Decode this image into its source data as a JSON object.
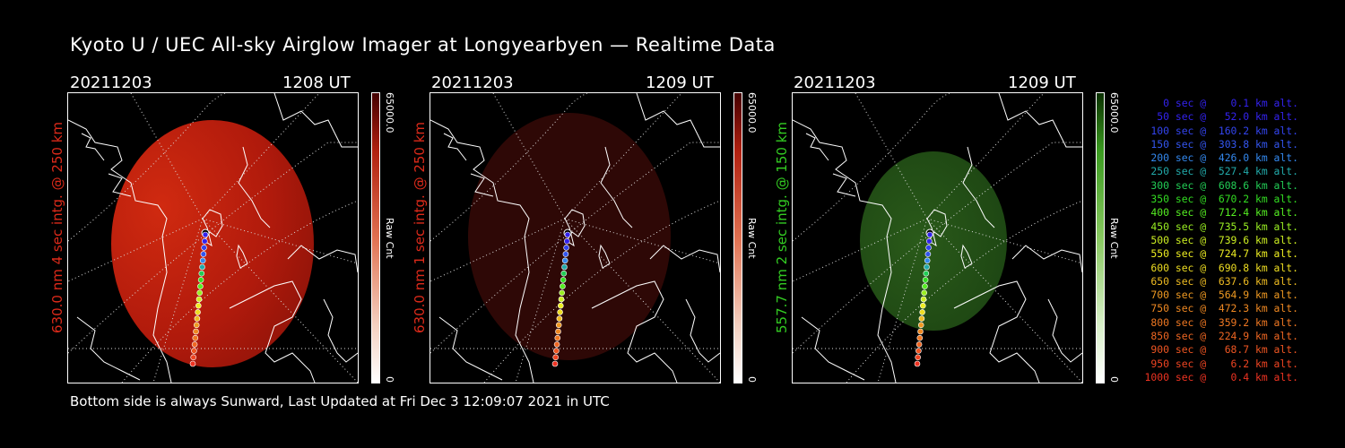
{
  "title": "Kyoto U / UEC All-sky Airglow Imager at Longyearbyen — Realtime Data",
  "footer": "Bottom side is always Sunward, Last Updated at Fri Dec  3 12:09:07 2021 in UTC",
  "colors": {
    "red": "#cc2200",
    "green": "#33aa22"
  },
  "panels": [
    {
      "date": "20211203",
      "time": "1208 UT",
      "side_label": "630.0 nm  4 sec intg. @ 250 km",
      "label_color": "#dd2a1a",
      "cbar_max": "65000.0",
      "cbar_title": "Raw Cnt",
      "cbar_min": "0",
      "airglow": "bright-red"
    },
    {
      "date": "20211203",
      "time": "1209 UT",
      "side_label": "630.0 nm  1 sec intg. @ 250 km",
      "label_color": "#dd2a1a",
      "cbar_max": "65000.0",
      "cbar_title": "Raw Cnt",
      "cbar_min": "0",
      "airglow": "dim-red"
    },
    {
      "date": "20211203",
      "time": "1209 UT",
      "side_label": "557.7 nm  2 sec intg. @ 150 km",
      "label_color": "#33cc22",
      "cbar_max": "65000.0",
      "cbar_title": "Raw Cnt",
      "cbar_min": "0",
      "airglow": "green"
    }
  ],
  "legend": [
    {
      "text": "   0 sec @    0.1 km alt.",
      "color": "#3322ee"
    },
    {
      "text": "  50 sec @   52.0 km alt.",
      "color": "#3322ee"
    },
    {
      "text": " 100 sec @  160.2 km alt.",
      "color": "#3344ee"
    },
    {
      "text": " 150 sec @  303.8 km alt.",
      "color": "#3355ee"
    },
    {
      "text": " 200 sec @  426.0 km alt.",
      "color": "#3388ee"
    },
    {
      "text": " 250 sec @  527.4 km alt.",
      "color": "#22aaaa"
    },
    {
      "text": " 300 sec @  608.6 km alt.",
      "color": "#22cc55"
    },
    {
      "text": " 350 sec @  670.2 km alt.",
      "color": "#33dd22"
    },
    {
      "text": " 400 sec @  712.4 km alt.",
      "color": "#55ee22"
    },
    {
      "text": " 450 sec @  735.5 km alt.",
      "color": "#99ee22"
    },
    {
      "text": " 500 sec @  739.6 km alt.",
      "color": "#ccee22"
    },
    {
      "text": " 550 sec @  724.7 km alt.",
      "color": "#eeee22"
    },
    {
      "text": " 600 sec @  690.8 km alt.",
      "color": "#eedd22"
    },
    {
      "text": " 650 sec @  637.6 km alt.",
      "color": "#eebb22"
    },
    {
      "text": " 700 sec @  564.9 km alt.",
      "color": "#ee9922"
    },
    {
      "text": " 750 sec @  472.3 km alt.",
      "color": "#ee8822"
    },
    {
      "text": " 800 sec @  359.2 km alt.",
      "color": "#ee7722"
    },
    {
      "text": " 850 sec @  224.9 km alt.",
      "color": "#ee6622"
    },
    {
      "text": " 900 sec @   68.7 km alt.",
      "color": "#ee5522"
    },
    {
      "text": " 950 sec @    6.2 km alt.",
      "color": "#ee4422"
    },
    {
      "text": "1000 sec @    0.4 km alt.",
      "color": "#ee3322"
    }
  ]
}
